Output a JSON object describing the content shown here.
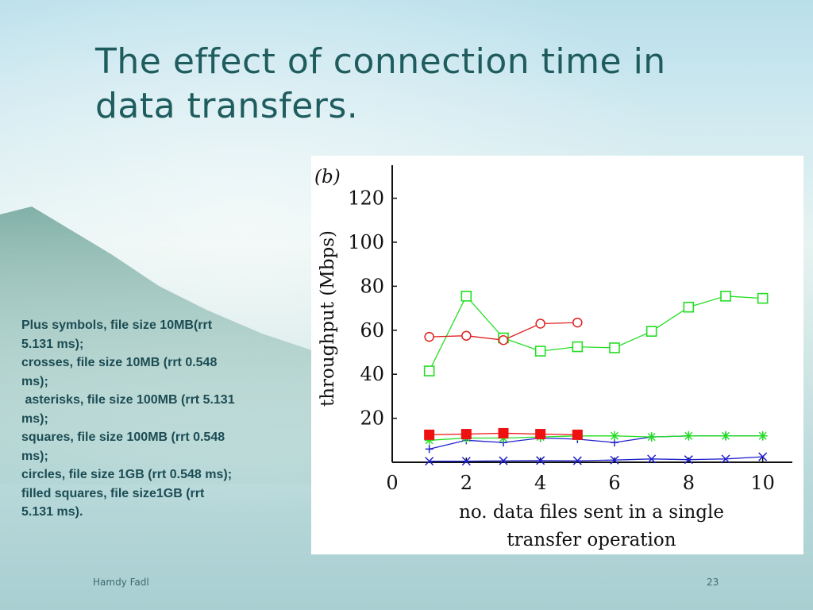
{
  "slide": {
    "title_line1": "The effect of connection time in",
    "title_line2": "data transfers.",
    "legend_lines": [
      "Plus symbols, file size 10MB(rrt",
      "5.131 ms);",
      "crosses, file size 10MB (rrt 0.548",
      "ms);",
      " asterisks, file size 100MB (rrt 5.131",
      "ms);",
      "squares, file size 100MB (rrt 0.548",
      "ms);",
      "circles, file size 1GB (rrt 0.548 ms);",
      "filled squares, file size1GB (rrt",
      "5.131 ms)."
    ],
    "footer_author": "Hamdy  Fadl",
    "page_number": "23"
  },
  "chart_data": {
    "type": "line",
    "panel_label": "(b)",
    "xlabel_line1": "no. data files sent in a single",
    "xlabel_line2": "transfer operation",
    "ylabel": "throughput (Mbps)",
    "xlim": [
      0,
      10.8
    ],
    "ylim": [
      0,
      135
    ],
    "x_ticks": [
      0,
      2,
      4,
      6,
      8,
      10
    ],
    "y_ticks": [
      20,
      40,
      60,
      80,
      100,
      120
    ],
    "grid": false,
    "series": [
      {
        "marker": "plus",
        "color": "#2020cc",
        "x": [
          1,
          2,
          3,
          4,
          5,
          6,
          7,
          8,
          9,
          10
        ],
        "y": [
          6,
          10,
          9,
          11,
          10.5,
          9,
          11.5,
          12,
          12,
          12
        ]
      },
      {
        "marker": "cross",
        "color": "#2020cc",
        "x": [
          1,
          2,
          3,
          4,
          5,
          6,
          7,
          8,
          9,
          10
        ],
        "y": [
          0.5,
          0.5,
          0.7,
          0.8,
          0.7,
          1,
          1.5,
          1.2,
          1.5,
          2.5
        ]
      },
      {
        "marker": "asterisk",
        "color": "#22dd22",
        "x": [
          1,
          2,
          3,
          4,
          5,
          6,
          7,
          8,
          9,
          10
        ],
        "y": [
          10,
          11,
          11,
          11.5,
          12,
          12,
          11.5,
          12,
          12,
          12
        ]
      },
      {
        "marker": "square",
        "color": "#22dd22",
        "x": [
          1,
          2,
          3,
          4,
          5,
          6,
          7,
          8,
          9,
          10
        ],
        "y": [
          41.5,
          75.5,
          56.5,
          50.5,
          52.5,
          52,
          59.5,
          70.5,
          75.5,
          74.5
        ]
      },
      {
        "marker": "circle",
        "color": "#e02020",
        "x": [
          1,
          2,
          3,
          4,
          5
        ],
        "y": [
          57,
          57.5,
          55.5,
          63,
          63.5
        ]
      },
      {
        "marker": "filled-square",
        "color": "#ee1111",
        "x": [
          1,
          2,
          3,
          4,
          5
        ],
        "y": [
          12.5,
          12.8,
          13.2,
          12.8,
          12.5
        ]
      }
    ]
  }
}
